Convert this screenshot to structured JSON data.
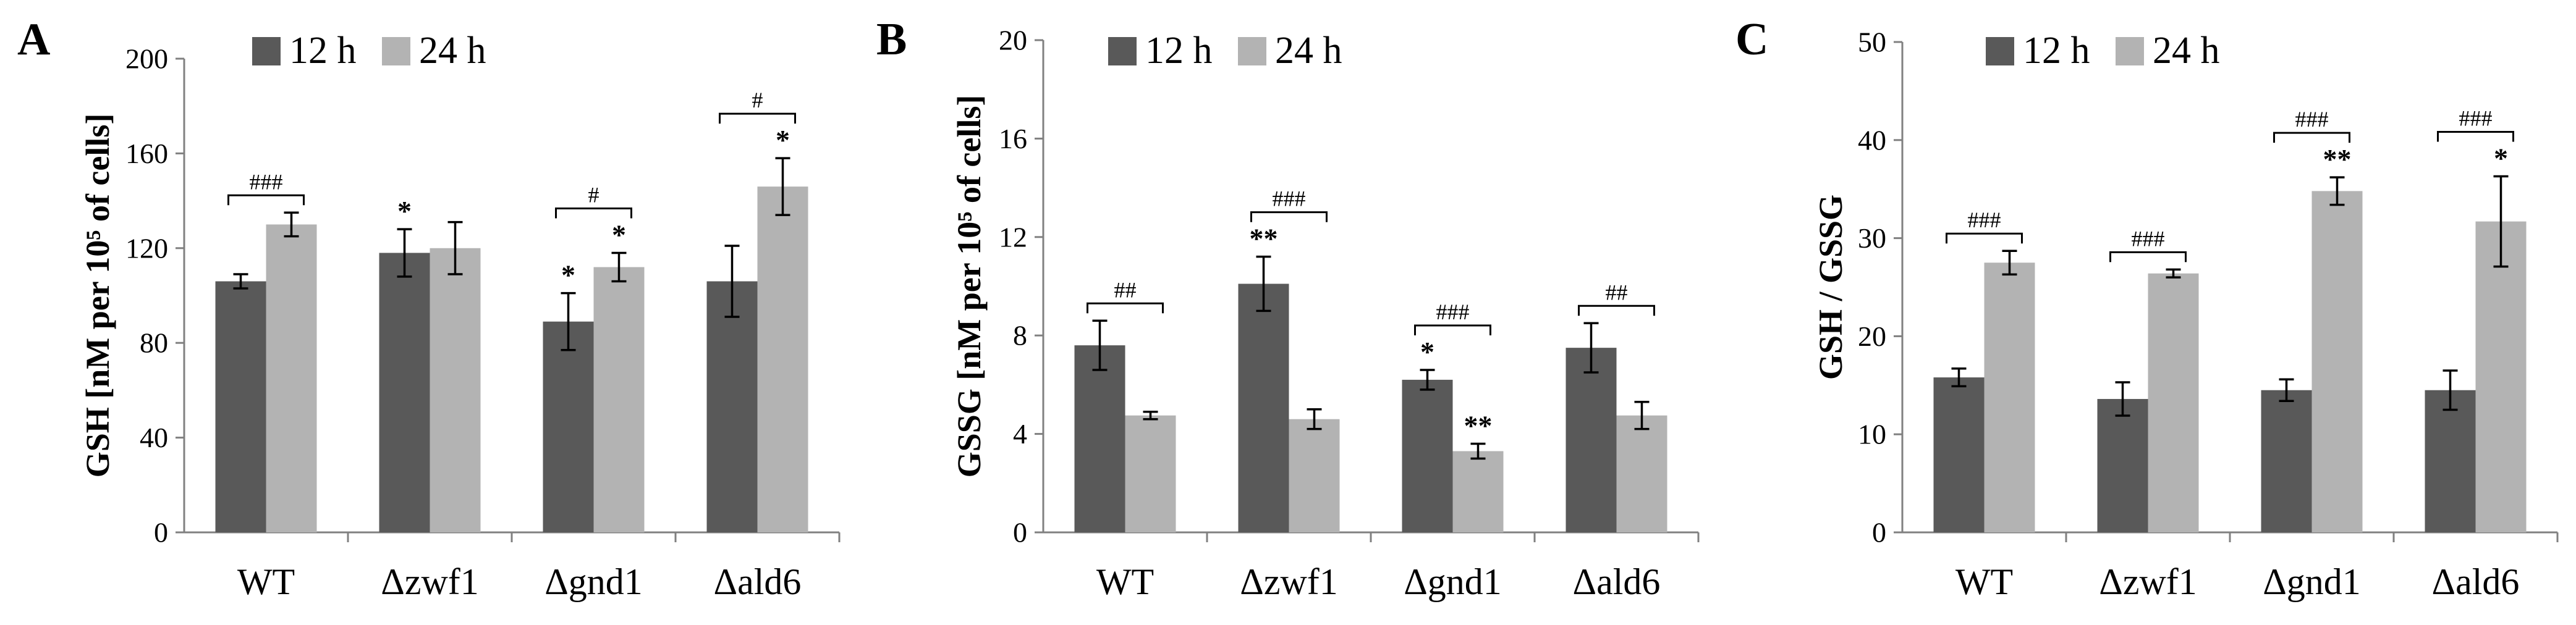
{
  "colors": {
    "h12": "#595959",
    "h24": "#b3b3b3",
    "axis": "#808080",
    "text": "#000000"
  },
  "legend": [
    "12 h",
    "24 h"
  ],
  "chart_data": [
    {
      "panel": "A",
      "type": "bar",
      "ylabel": "GSH [nM per 10⁵ of cells]",
      "ylim": [
        0,
        200
      ],
      "yticks": [
        "0",
        "40",
        "80",
        "120",
        "160",
        "200"
      ],
      "categories": [
        "WT",
        "Δzwf1",
        "Δgnd1",
        "Δald6"
      ],
      "series": [
        {
          "name": "12 h",
          "values": [
            106,
            118,
            89,
            106
          ],
          "errors": [
            3,
            10,
            12,
            15
          ],
          "marks": [
            "",
            "*",
            "*",
            ""
          ]
        },
        {
          "name": "24 h",
          "values": [
            130,
            120,
            112,
            146
          ],
          "errors": [
            5,
            11,
            6,
            12
          ],
          "marks": [
            "",
            "",
            "*",
            "*"
          ]
        }
      ],
      "significance": [
        "###",
        "",
        "#",
        "#"
      ]
    },
    {
      "panel": "B",
      "type": "bar",
      "ylabel": "GSSG [nM per 10⁵ of cells]",
      "ylim": [
        0,
        20
      ],
      "yticks": [
        "0",
        "4",
        "8",
        "12",
        "16",
        "20"
      ],
      "categories": [
        "WT",
        "Δzwf1",
        "Δgnd1",
        "Δald6"
      ],
      "series": [
        {
          "name": "12 h",
          "values": [
            7.6,
            10.1,
            6.2,
            7.5
          ],
          "errors": [
            1.0,
            1.1,
            0.4,
            1.0
          ],
          "marks": [
            "",
            "**",
            "*",
            ""
          ]
        },
        {
          "name": "24 h",
          "values": [
            4.75,
            4.6,
            3.3,
            4.75
          ],
          "errors": [
            0.15,
            0.4,
            0.3,
            0.55
          ],
          "marks": [
            "",
            "",
            "**",
            ""
          ]
        }
      ],
      "significance": [
        "##",
        "###",
        "###",
        "##"
      ]
    },
    {
      "panel": "C",
      "type": "bar",
      "ylabel": "GSH / GSSG",
      "ylim": [
        0,
        50
      ],
      "yticks": [
        "0",
        "10",
        "20",
        "30",
        "40",
        "50"
      ],
      "categories": [
        "WT",
        "Δzwf1",
        "Δgnd1",
        "Δald6"
      ],
      "series": [
        {
          "name": "12 h",
          "values": [
            15.8,
            13.6,
            14.5,
            14.5
          ],
          "errors": [
            0.9,
            1.7,
            1.1,
            2.0
          ],
          "marks": [
            "",
            "",
            "",
            ""
          ]
        },
        {
          "name": "24 h",
          "values": [
            27.5,
            26.4,
            34.8,
            31.7
          ],
          "errors": [
            1.2,
            0.4,
            1.4,
            4.6
          ],
          "marks": [
            "",
            "",
            "**",
            "*"
          ]
        }
      ],
      "significance": [
        "###",
        "###",
        "###",
        "###"
      ]
    }
  ]
}
